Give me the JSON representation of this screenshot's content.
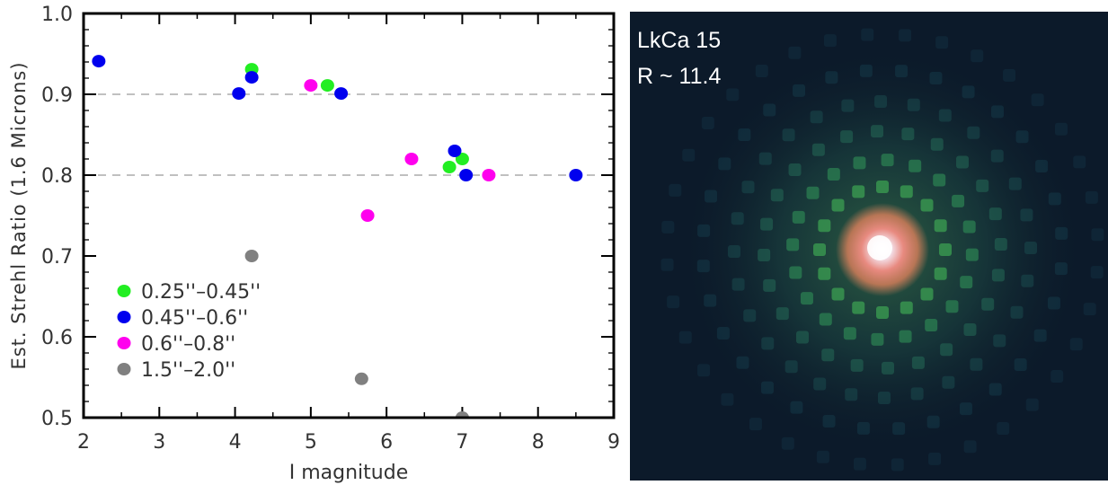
{
  "chart_data": [
    {
      "type": "scatter",
      "title": "",
      "xlabel": "I magnitude",
      "ylabel": "Est. Strehl Ratio (1.6 Microns)",
      "xlim": [
        2,
        9
      ],
      "ylim": [
        0.5,
        1.0
      ],
      "xticks": [
        "2",
        "3",
        "4",
        "5",
        "6",
        "7",
        "8",
        "9"
      ],
      "yticks": [
        "0.5",
        "0.6",
        "0.7",
        "0.8",
        "0.9",
        "1.0"
      ],
      "reference_lines": [
        0.8,
        0.9
      ],
      "legend_position": "lower-left",
      "series": [
        {
          "name": "0.25''–0.45''",
          "color": "#22ee22",
          "points": [
            [
              4.22,
              0.931
            ],
            [
              5.22,
              0.911
            ],
            [
              6.83,
              0.81
            ],
            [
              7.0,
              0.82
            ]
          ]
        },
        {
          "name": "0.45''–0.6''",
          "color": "#0000ee",
          "points": [
            [
              2.2,
              0.941
            ],
            [
              4.05,
              0.901
            ],
            [
              4.22,
              0.921
            ],
            [
              5.4,
              0.901
            ],
            [
              6.9,
              0.83
            ],
            [
              7.05,
              0.8
            ],
            [
              8.5,
              0.8
            ]
          ]
        },
        {
          "name": "0.6''–0.8''",
          "color": "#ff00ee",
          "points": [
            [
              5.0,
              0.911
            ],
            [
              5.75,
              0.75
            ],
            [
              6.33,
              0.82
            ],
            [
              7.35,
              0.8
            ]
          ]
        },
        {
          "name": "1.5''–2.0''",
          "color": "#808080",
          "points": [
            [
              4.22,
              0.7
            ],
            [
              5.67,
              0.548
            ],
            [
              7.0,
              0.5
            ]
          ]
        }
      ]
    }
  ],
  "image_panel": {
    "label_line1": "LkCa 15",
    "label_line2": "R ~ 11.4",
    "background_color": "#0c1a2a"
  }
}
